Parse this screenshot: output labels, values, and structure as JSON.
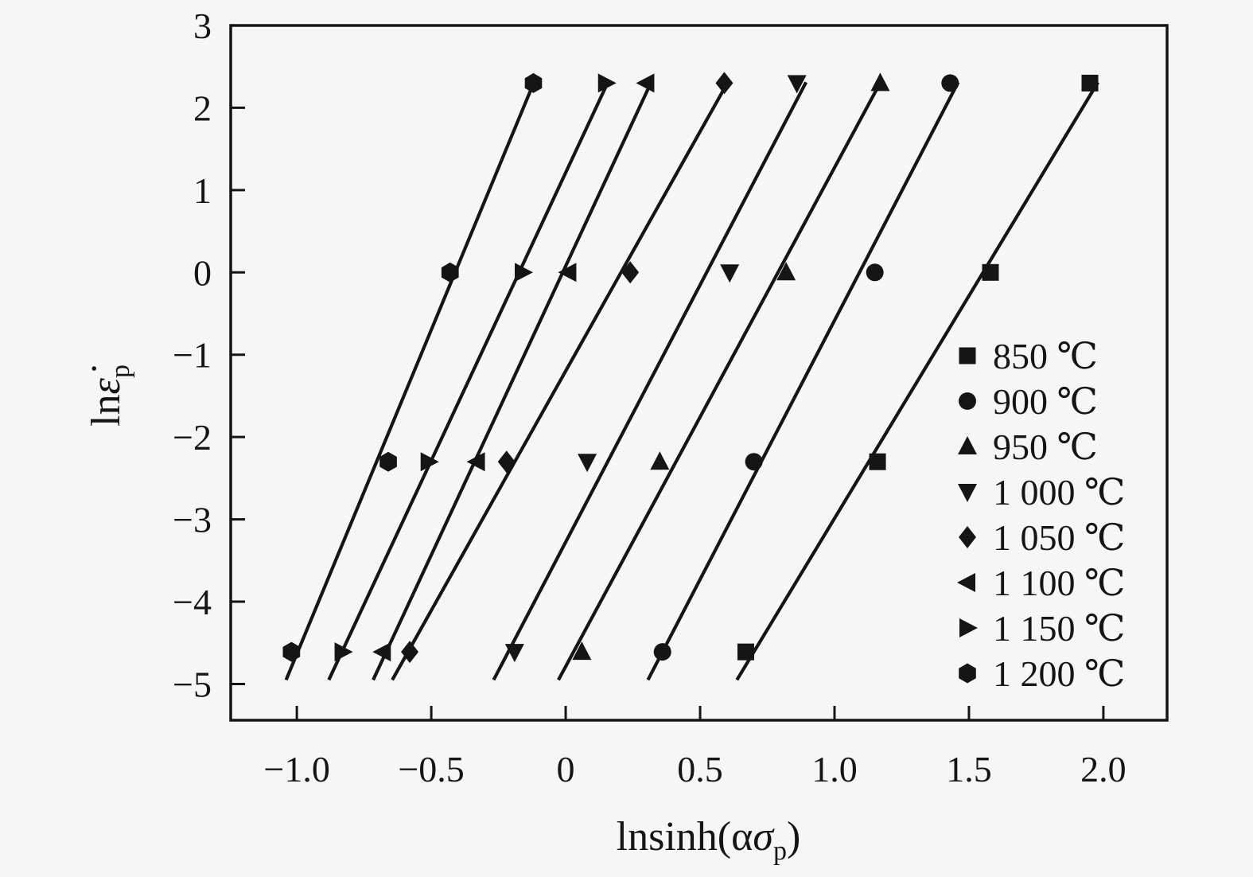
{
  "chart_data": {
    "type": "scatter",
    "title": "",
    "xlabel": {
      "prefix": "lnsinh(α",
      "sigma": "σ",
      "sub": "p",
      "suffix": ")"
    },
    "ylabel": {
      "prefix": "ln",
      "epsilon": "ε̇",
      "sub": "p"
    },
    "xlim": [
      -1.246,
      2.237
    ],
    "ylim": [
      -5.44,
      3.0
    ],
    "x_ticks": [
      -1.0,
      -0.5,
      0,
      0.5,
      1.0,
      1.5,
      2.0
    ],
    "x_tick_labels": [
      "−1.0",
      "−0.5",
      "0",
      "0.5",
      "1.0",
      "1.5",
      "2.0"
    ],
    "y_ticks": [
      3,
      2,
      1,
      0,
      -1,
      -2,
      -3,
      -4,
      -5
    ],
    "y_tick_labels": [
      "3",
      "2",
      "1",
      "0",
      "−1",
      "−2",
      "−3",
      "−4",
      "−5"
    ],
    "grid": false,
    "legend_position": "right-middle",
    "marker_color": "#151515",
    "line_color": "#151515",
    "y_values": [
      -4.61,
      -2.3,
      0.0,
      2.3
    ],
    "series": [
      {
        "label": "850 ℃",
        "marker": "square",
        "x": [
          0.67,
          1.16,
          1.58,
          1.95
        ],
        "line": {
          "x1": 0.637,
          "y1": -4.95,
          "x2": 1.98,
          "y2": 2.31
        }
      },
      {
        "label": "900 ℃",
        "marker": "circle",
        "x": [
          0.36,
          0.7,
          1.15,
          1.43
        ],
        "line": {
          "x1": 0.306,
          "y1": -4.95,
          "x2": 1.46,
          "y2": 2.31
        }
      },
      {
        "label": "950 ℃",
        "marker": "triangle-up",
        "x": [
          0.06,
          0.35,
          0.82,
          1.17
        ],
        "line": {
          "x1": -0.027,
          "y1": -4.95,
          "x2": 1.171,
          "y2": 2.31
        }
      },
      {
        "label": "1 000 ℃",
        "marker": "triangle-down",
        "x": [
          -0.19,
          0.08,
          0.61,
          0.86
        ],
        "line": {
          "x1": -0.268,
          "y1": -4.95,
          "x2": 0.894,
          "y2": 2.31
        }
      },
      {
        "label": "1 050 ℃",
        "marker": "diamond",
        "x": [
          -0.58,
          -0.22,
          0.24,
          0.59
        ],
        "line": {
          "x1": -0.645,
          "y1": -4.95,
          "x2": 0.603,
          "y2": 2.31
        }
      },
      {
        "label": "1 100 ℃",
        "marker": "triangle-left",
        "x": [
          -0.68,
          -0.33,
          0.01,
          0.3
        ],
        "line": {
          "x1": -0.716,
          "y1": -4.95,
          "x2": 0.318,
          "y2": 2.31
        }
      },
      {
        "label": "1 150 ℃",
        "marker": "triangle-right",
        "x": [
          -0.83,
          -0.51,
          -0.16,
          0.15
        ],
        "line": {
          "x1": -0.881,
          "y1": -4.95,
          "x2": 0.157,
          "y2": 2.31
        }
      },
      {
        "label": "1 200 ℃",
        "marker": "hexagon",
        "x": [
          -1.02,
          -0.66,
          -0.43,
          -0.12
        ],
        "line": {
          "x1": -1.04,
          "y1": -4.95,
          "x2": -0.118,
          "y2": 2.31
        }
      }
    ]
  }
}
